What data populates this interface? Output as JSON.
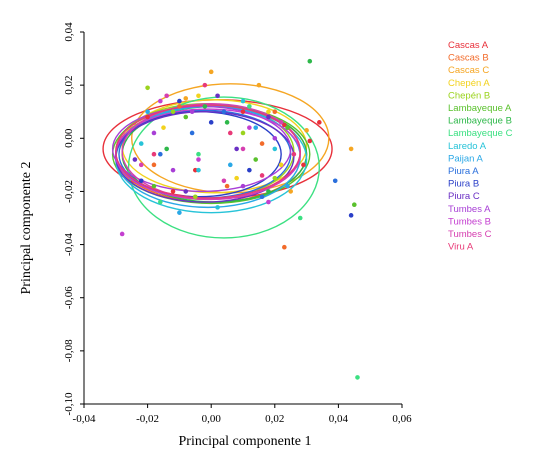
{
  "chart_data": {
    "type": "scatter",
    "xlabel": "Principal componente 1",
    "ylabel": "Principal componente 2",
    "xlim": [
      -0.04,
      0.06
    ],
    "ylim": [
      -0.1,
      0.04
    ],
    "xticks": [
      "-0,04",
      "-0,02",
      "0,00",
      "0,02",
      "0,04",
      "0,06"
    ],
    "yticks": [
      "0,04",
      "0,02",
      "0,00",
      "-0,02",
      "-0,04",
      "-0,06",
      "-0,08",
      "-0,10"
    ],
    "legend_position": "right",
    "series": [
      {
        "name": "Cascas A",
        "color": "#e8303a",
        "ellipse": {
          "cx": 0.002,
          "cy": -0.004,
          "rx": 0.036,
          "ry": 0.0185
        },
        "points": [
          [
            0.031,
            -0.001
          ],
          [
            0.023,
            0.005
          ],
          [
            0.029,
            -0.01
          ],
          [
            -0.02,
            0.008
          ],
          [
            -0.005,
            -0.012
          ],
          [
            0.01,
            0.01
          ],
          [
            0.034,
            0.006
          ],
          [
            -0.012,
            -0.02
          ]
        ]
      },
      {
        "name": "Cascas B",
        "color": "#f26b2a",
        "ellipse": {
          "cx": 0.0,
          "cy": -0.006,
          "rx": 0.03,
          "ry": 0.018
        },
        "points": [
          [
            0.023,
            -0.041
          ],
          [
            0.016,
            -0.002
          ],
          [
            -0.01,
            0.012
          ],
          [
            0.005,
            -0.018
          ],
          [
            0.02,
            0.01
          ],
          [
            -0.018,
            -0.01
          ]
        ]
      },
      {
        "name": "Cascas C",
        "color": "#f5a623",
        "ellipse": {
          "cx": 0.006,
          "cy": 0.0,
          "rx": 0.031,
          "ry": 0.0205
        },
        "points": [
          [
            0.044,
            -0.004
          ],
          [
            0.03,
            0.003
          ],
          [
            0.015,
            0.02
          ],
          [
            -0.008,
            0.015
          ],
          [
            0.025,
            -0.02
          ],
          [
            0.0,
            0.025
          ]
        ]
      },
      {
        "name": "Chepén A",
        "color": "#f2d21e",
        "ellipse": {
          "cx": 0.001,
          "cy": -0.003,
          "rx": 0.029,
          "ry": 0.0175
        },
        "points": [
          [
            0.018,
            0.01
          ],
          [
            -0.015,
            0.004
          ],
          [
            0.008,
            -0.015
          ],
          [
            0.022,
            -0.01
          ],
          [
            -0.004,
            0.016
          ]
        ]
      },
      {
        "name": "Chepén B",
        "color": "#9bd31e",
        "ellipse": {
          "cx": -0.002,
          "cy": -0.005,
          "rx": 0.028,
          "ry": 0.018
        },
        "points": [
          [
            -0.02,
            0.019
          ],
          [
            0.01,
            0.002
          ],
          [
            -0.005,
            -0.022
          ],
          [
            0.02,
            -0.015
          ],
          [
            -0.012,
            0.01
          ]
        ]
      },
      {
        "name": "Lambayeque A",
        "color": "#5ac12d",
        "ellipse": {
          "cx": 0.0,
          "cy": -0.006,
          "rx": 0.031,
          "ry": 0.0185
        },
        "points": [
          [
            0.045,
            -0.025
          ],
          [
            -0.008,
            0.008
          ],
          [
            0.014,
            -0.008
          ],
          [
            -0.018,
            -0.018
          ],
          [
            0.024,
            0.004
          ]
        ]
      },
      {
        "name": "Lambayeque B",
        "color": "#2eb84a",
        "ellipse": {
          "cx": 0.001,
          "cy": -0.006,
          "rx": 0.029,
          "ry": 0.018
        },
        "points": [
          [
            0.031,
            0.029
          ],
          [
            0.005,
            0.006
          ],
          [
            -0.014,
            -0.004
          ],
          [
            0.018,
            -0.02
          ],
          [
            -0.002,
            0.012
          ]
        ]
      },
      {
        "name": "Lambayeque C",
        "color": "#3ce082",
        "ellipse": {
          "cx": 0.004,
          "cy": -0.011,
          "rx": 0.03,
          "ry": 0.0265
        },
        "points": [
          [
            0.046,
            -0.09
          ],
          [
            0.012,
            0.012
          ],
          [
            -0.016,
            -0.024
          ],
          [
            0.028,
            -0.03
          ],
          [
            -0.004,
            -0.006
          ]
        ]
      },
      {
        "name": "Laredo A",
        "color": "#27c3d8",
        "ellipse": {
          "cx": 0.0,
          "cy": -0.008,
          "rx": 0.03,
          "ry": 0.02
        },
        "points": [
          [
            -0.004,
            -0.012
          ],
          [
            0.01,
            0.014
          ],
          [
            -0.022,
            -0.002
          ],
          [
            0.02,
            -0.004
          ],
          [
            0.002,
            -0.026
          ]
        ]
      },
      {
        "name": "Paijan A",
        "color": "#2aa8e6",
        "ellipse": {
          "cx": -0.001,
          "cy": -0.007,
          "rx": 0.029,
          "ry": 0.019
        },
        "points": [
          [
            -0.01,
            -0.028
          ],
          [
            0.014,
            0.004
          ],
          [
            -0.02,
            0.01
          ],
          [
            0.006,
            -0.01
          ],
          [
            0.024,
            -0.018
          ]
        ]
      },
      {
        "name": "Piura A",
        "color": "#2a6fdc",
        "ellipse": {
          "cx": -0.002,
          "cy": -0.006,
          "rx": 0.027,
          "ry": 0.0165
        },
        "points": [
          [
            0.039,
            -0.016
          ],
          [
            -0.016,
            -0.006
          ],
          [
            0.004,
            0.01
          ],
          [
            0.016,
            -0.022
          ],
          [
            -0.006,
            0.002
          ]
        ]
      },
      {
        "name": "Piura B",
        "color": "#2a3fc8",
        "ellipse": {
          "cx": -0.004,
          "cy": -0.006,
          "rx": 0.026,
          "ry": 0.016
        },
        "points": [
          [
            0.044,
            -0.029
          ],
          [
            -0.022,
            -0.016
          ],
          [
            0.0,
            0.006
          ],
          [
            0.012,
            -0.012
          ],
          [
            -0.01,
            0.014
          ]
        ]
      },
      {
        "name": "Piura C",
        "color": "#6a2fc4",
        "ellipse": {
          "cx": -0.002,
          "cy": -0.007,
          "rx": 0.028,
          "ry": 0.017
        },
        "points": [
          [
            -0.024,
            -0.008
          ],
          [
            0.008,
            -0.004
          ],
          [
            0.018,
            0.008
          ],
          [
            -0.008,
            -0.02
          ],
          [
            0.002,
            0.016
          ]
        ]
      },
      {
        "name": "Tumbes A",
        "color": "#a83fd6",
        "ellipse": {
          "cx": -0.003,
          "cy": -0.004,
          "rx": 0.028,
          "ry": 0.016
        },
        "points": [
          [
            -0.018,
            0.002
          ],
          [
            0.01,
            -0.018
          ],
          [
            -0.006,
            0.01
          ],
          [
            0.02,
            0.0
          ],
          [
            -0.012,
            -0.012
          ]
        ]
      },
      {
        "name": "Tumbes B",
        "color": "#c43fd0",
        "ellipse": {
          "cx": -0.001,
          "cy": -0.006,
          "rx": 0.029,
          "ry": 0.017
        },
        "points": [
          [
            -0.028,
            -0.036
          ],
          [
            0.012,
            0.004
          ],
          [
            -0.004,
            -0.008
          ],
          [
            0.018,
            -0.024
          ],
          [
            -0.016,
            0.014
          ]
        ]
      },
      {
        "name": "Tumbes C",
        "color": "#d63fb0",
        "ellipse": {
          "cx": 0.0,
          "cy": -0.005,
          "rx": 0.028,
          "ry": 0.018
        },
        "points": [
          [
            -0.014,
            0.016
          ],
          [
            0.004,
            -0.016
          ],
          [
            0.022,
            0.006
          ],
          [
            -0.022,
            -0.01
          ],
          [
            0.01,
            -0.004
          ]
        ]
      },
      {
        "name": "Viru A",
        "color": "#e83a78",
        "ellipse": {
          "cx": -0.001,
          "cy": -0.005,
          "rx": 0.029,
          "ry": 0.0175
        },
        "points": [
          [
            -0.002,
            0.02
          ],
          [
            0.016,
            -0.014
          ],
          [
            -0.018,
            -0.006
          ],
          [
            0.006,
            0.002
          ],
          [
            0.026,
            -0.006
          ]
        ]
      }
    ]
  }
}
